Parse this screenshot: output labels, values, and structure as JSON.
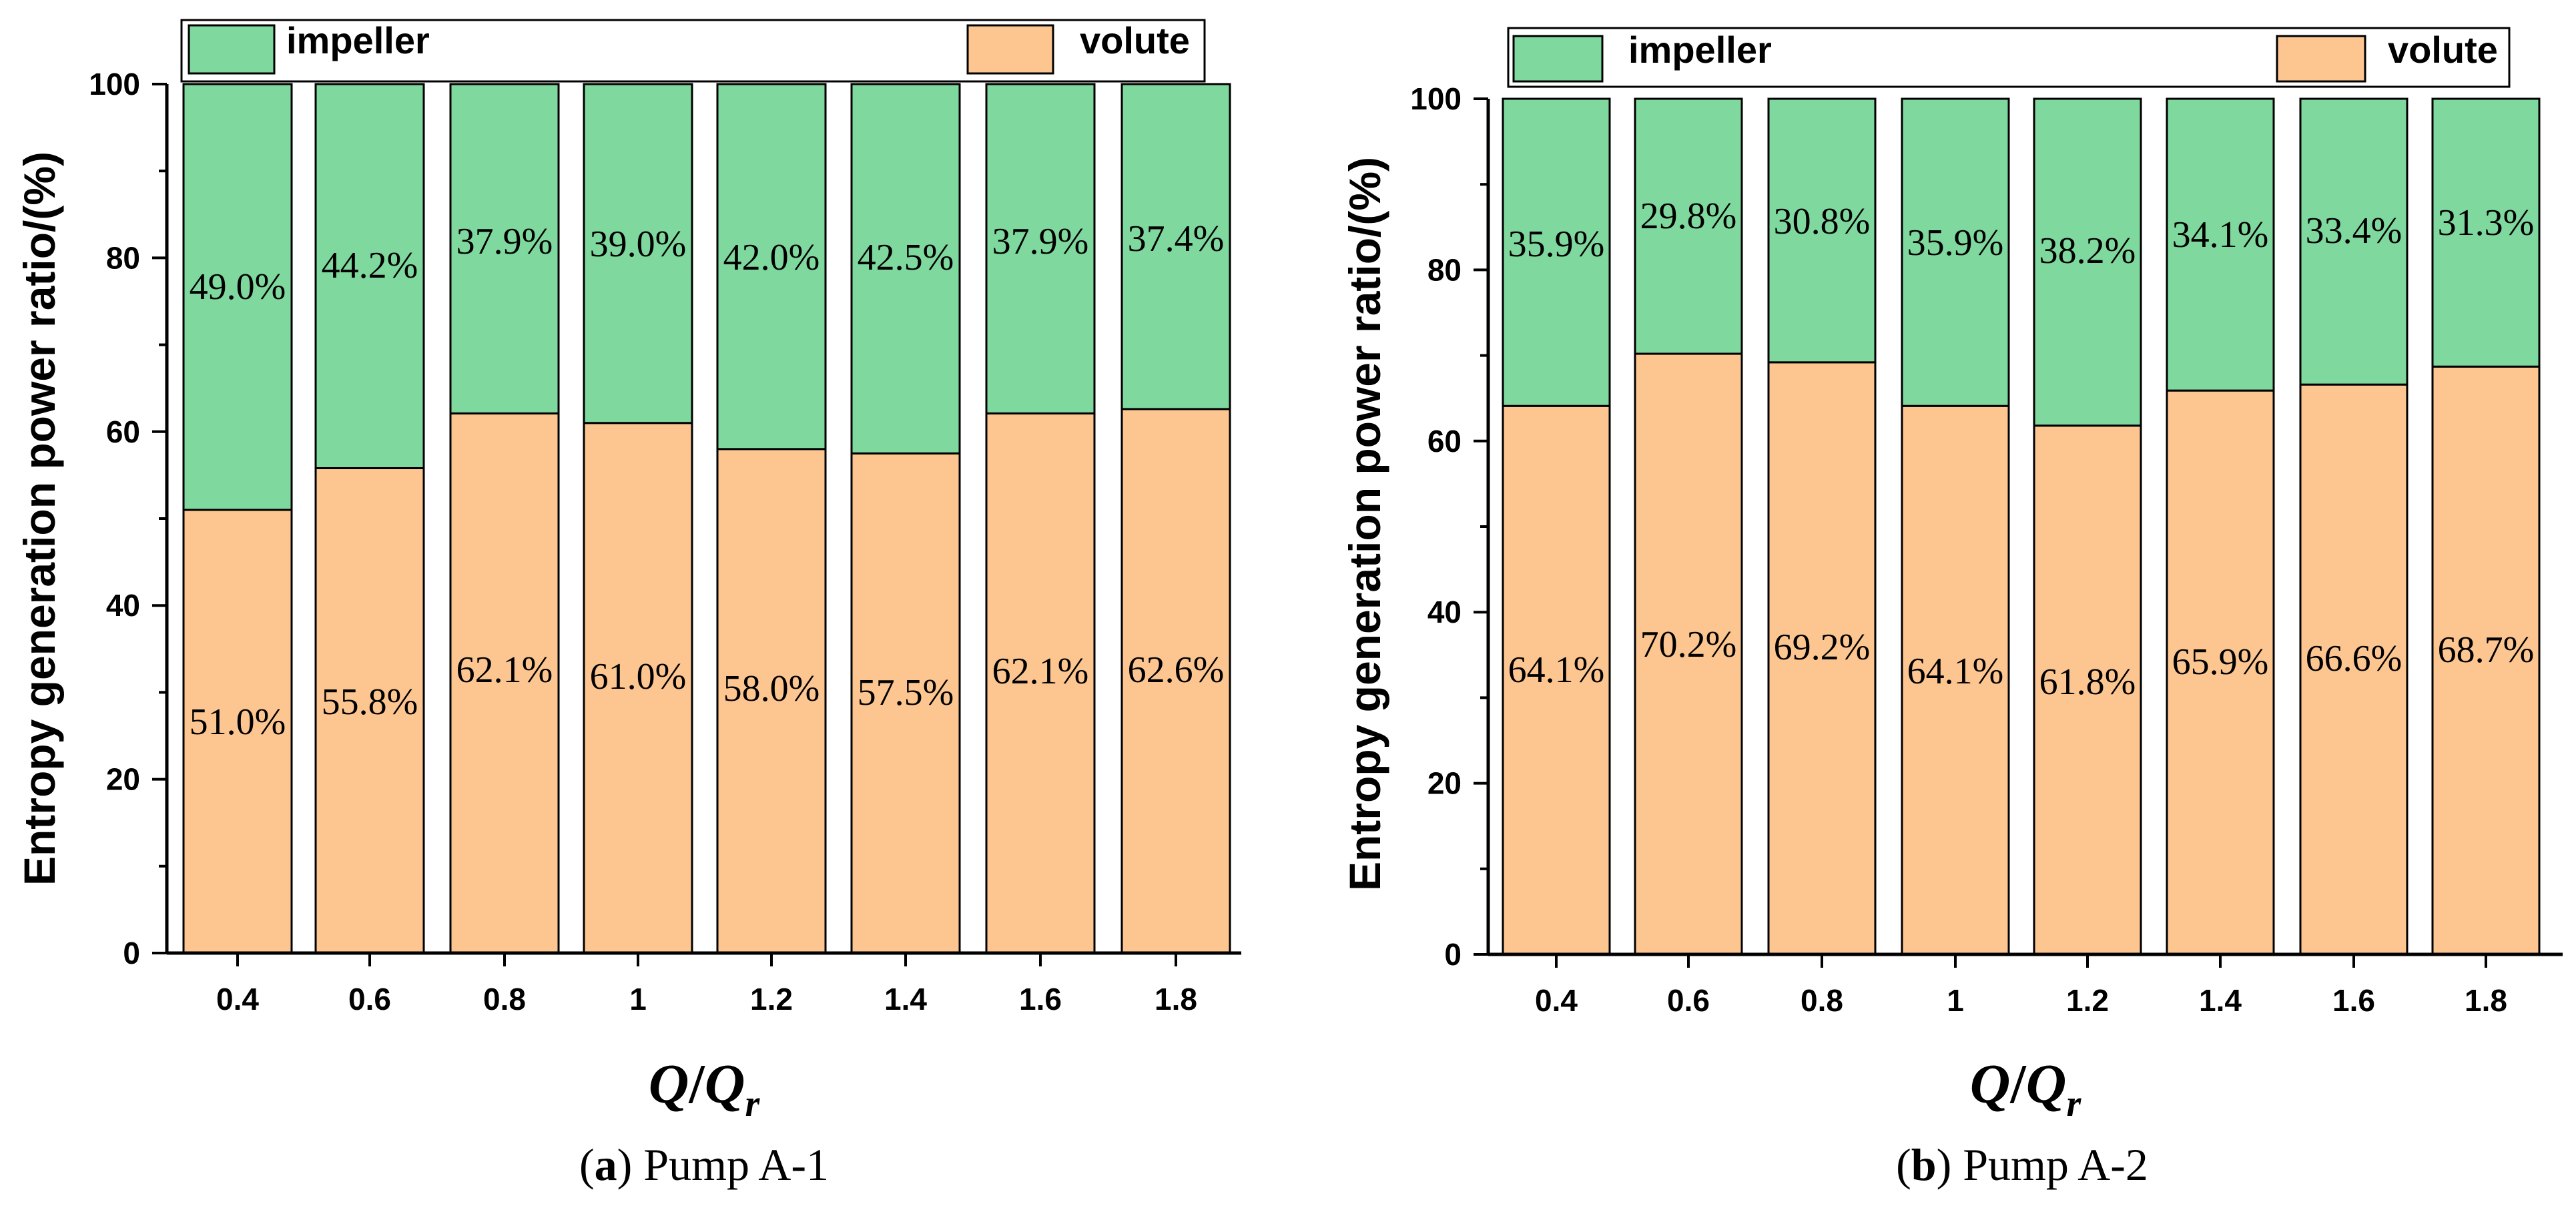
{
  "chart_data": [
    {
      "type": "bar",
      "stacked": true,
      "title": "",
      "caption": {
        "letter": "a",
        "text": "Pump A-1"
      },
      "xlabel": {
        "main": "Q",
        "slash": "/",
        "sub_base": "Q",
        "subscript": "r"
      },
      "ylabel": "Entropy generation power ratio/(%)",
      "ylim": [
        0,
        100
      ],
      "yticks": [
        0,
        20,
        40,
        60,
        80,
        100
      ],
      "categories": [
        "0.4",
        "0.6",
        "0.8",
        "1",
        "1.2",
        "1.4",
        "1.6",
        "1.8"
      ],
      "legend": {
        "position": "top"
      },
      "series": [
        {
          "name": "volute",
          "color": "#fdc691",
          "values": [
            51.0,
            55.8,
            62.1,
            61.0,
            58.0,
            57.5,
            62.1,
            62.6
          ],
          "labels": [
            "51.0%",
            "55.8%",
            "62.1%",
            "61.0%",
            "58.0%",
            "57.5%",
            "62.1%",
            "62.6%"
          ]
        },
        {
          "name": "impeller",
          "color": "#7fd89d",
          "values": [
            49.0,
            44.2,
            37.9,
            39.0,
            42.0,
            42.5,
            37.9,
            37.4
          ],
          "labels": [
            "49.0%",
            "44.2%",
            "37.9%",
            "39.0%",
            "42.0%",
            "42.5%",
            "37.9%",
            "37.4%"
          ]
        }
      ]
    },
    {
      "type": "bar",
      "stacked": true,
      "title": "",
      "caption": {
        "letter": "b",
        "text": "Pump A-2"
      },
      "xlabel": {
        "main": "Q",
        "slash": "/",
        "sub_base": "Q",
        "subscript": "r"
      },
      "ylabel": "Entropy generation power ratio/(%)",
      "ylim": [
        0,
        100
      ],
      "yticks": [
        0,
        20,
        40,
        60,
        80,
        100
      ],
      "categories": [
        "0.4",
        "0.6",
        "0.8",
        "1",
        "1.2",
        "1.4",
        "1.6",
        "1.8"
      ],
      "legend": {
        "position": "top"
      },
      "series": [
        {
          "name": "volute",
          "color": "#fdc691",
          "values": [
            64.1,
            70.2,
            69.2,
            64.1,
            61.8,
            65.9,
            66.6,
            68.7
          ],
          "labels": [
            "64.1%",
            "70.2%",
            "69.2%",
            "64.1%",
            "61.8%",
            "65.9%",
            "66.6%",
            "68.7%"
          ]
        },
        {
          "name": "impeller",
          "color": "#7fd89d",
          "values": [
            35.9,
            29.8,
            30.8,
            35.9,
            38.2,
            34.1,
            33.4,
            31.3
          ],
          "labels": [
            "35.9%",
            "29.8%",
            "30.8%",
            "35.9%",
            "38.2%",
            "34.1%",
            "33.4%",
            "31.3%"
          ]
        }
      ]
    }
  ]
}
